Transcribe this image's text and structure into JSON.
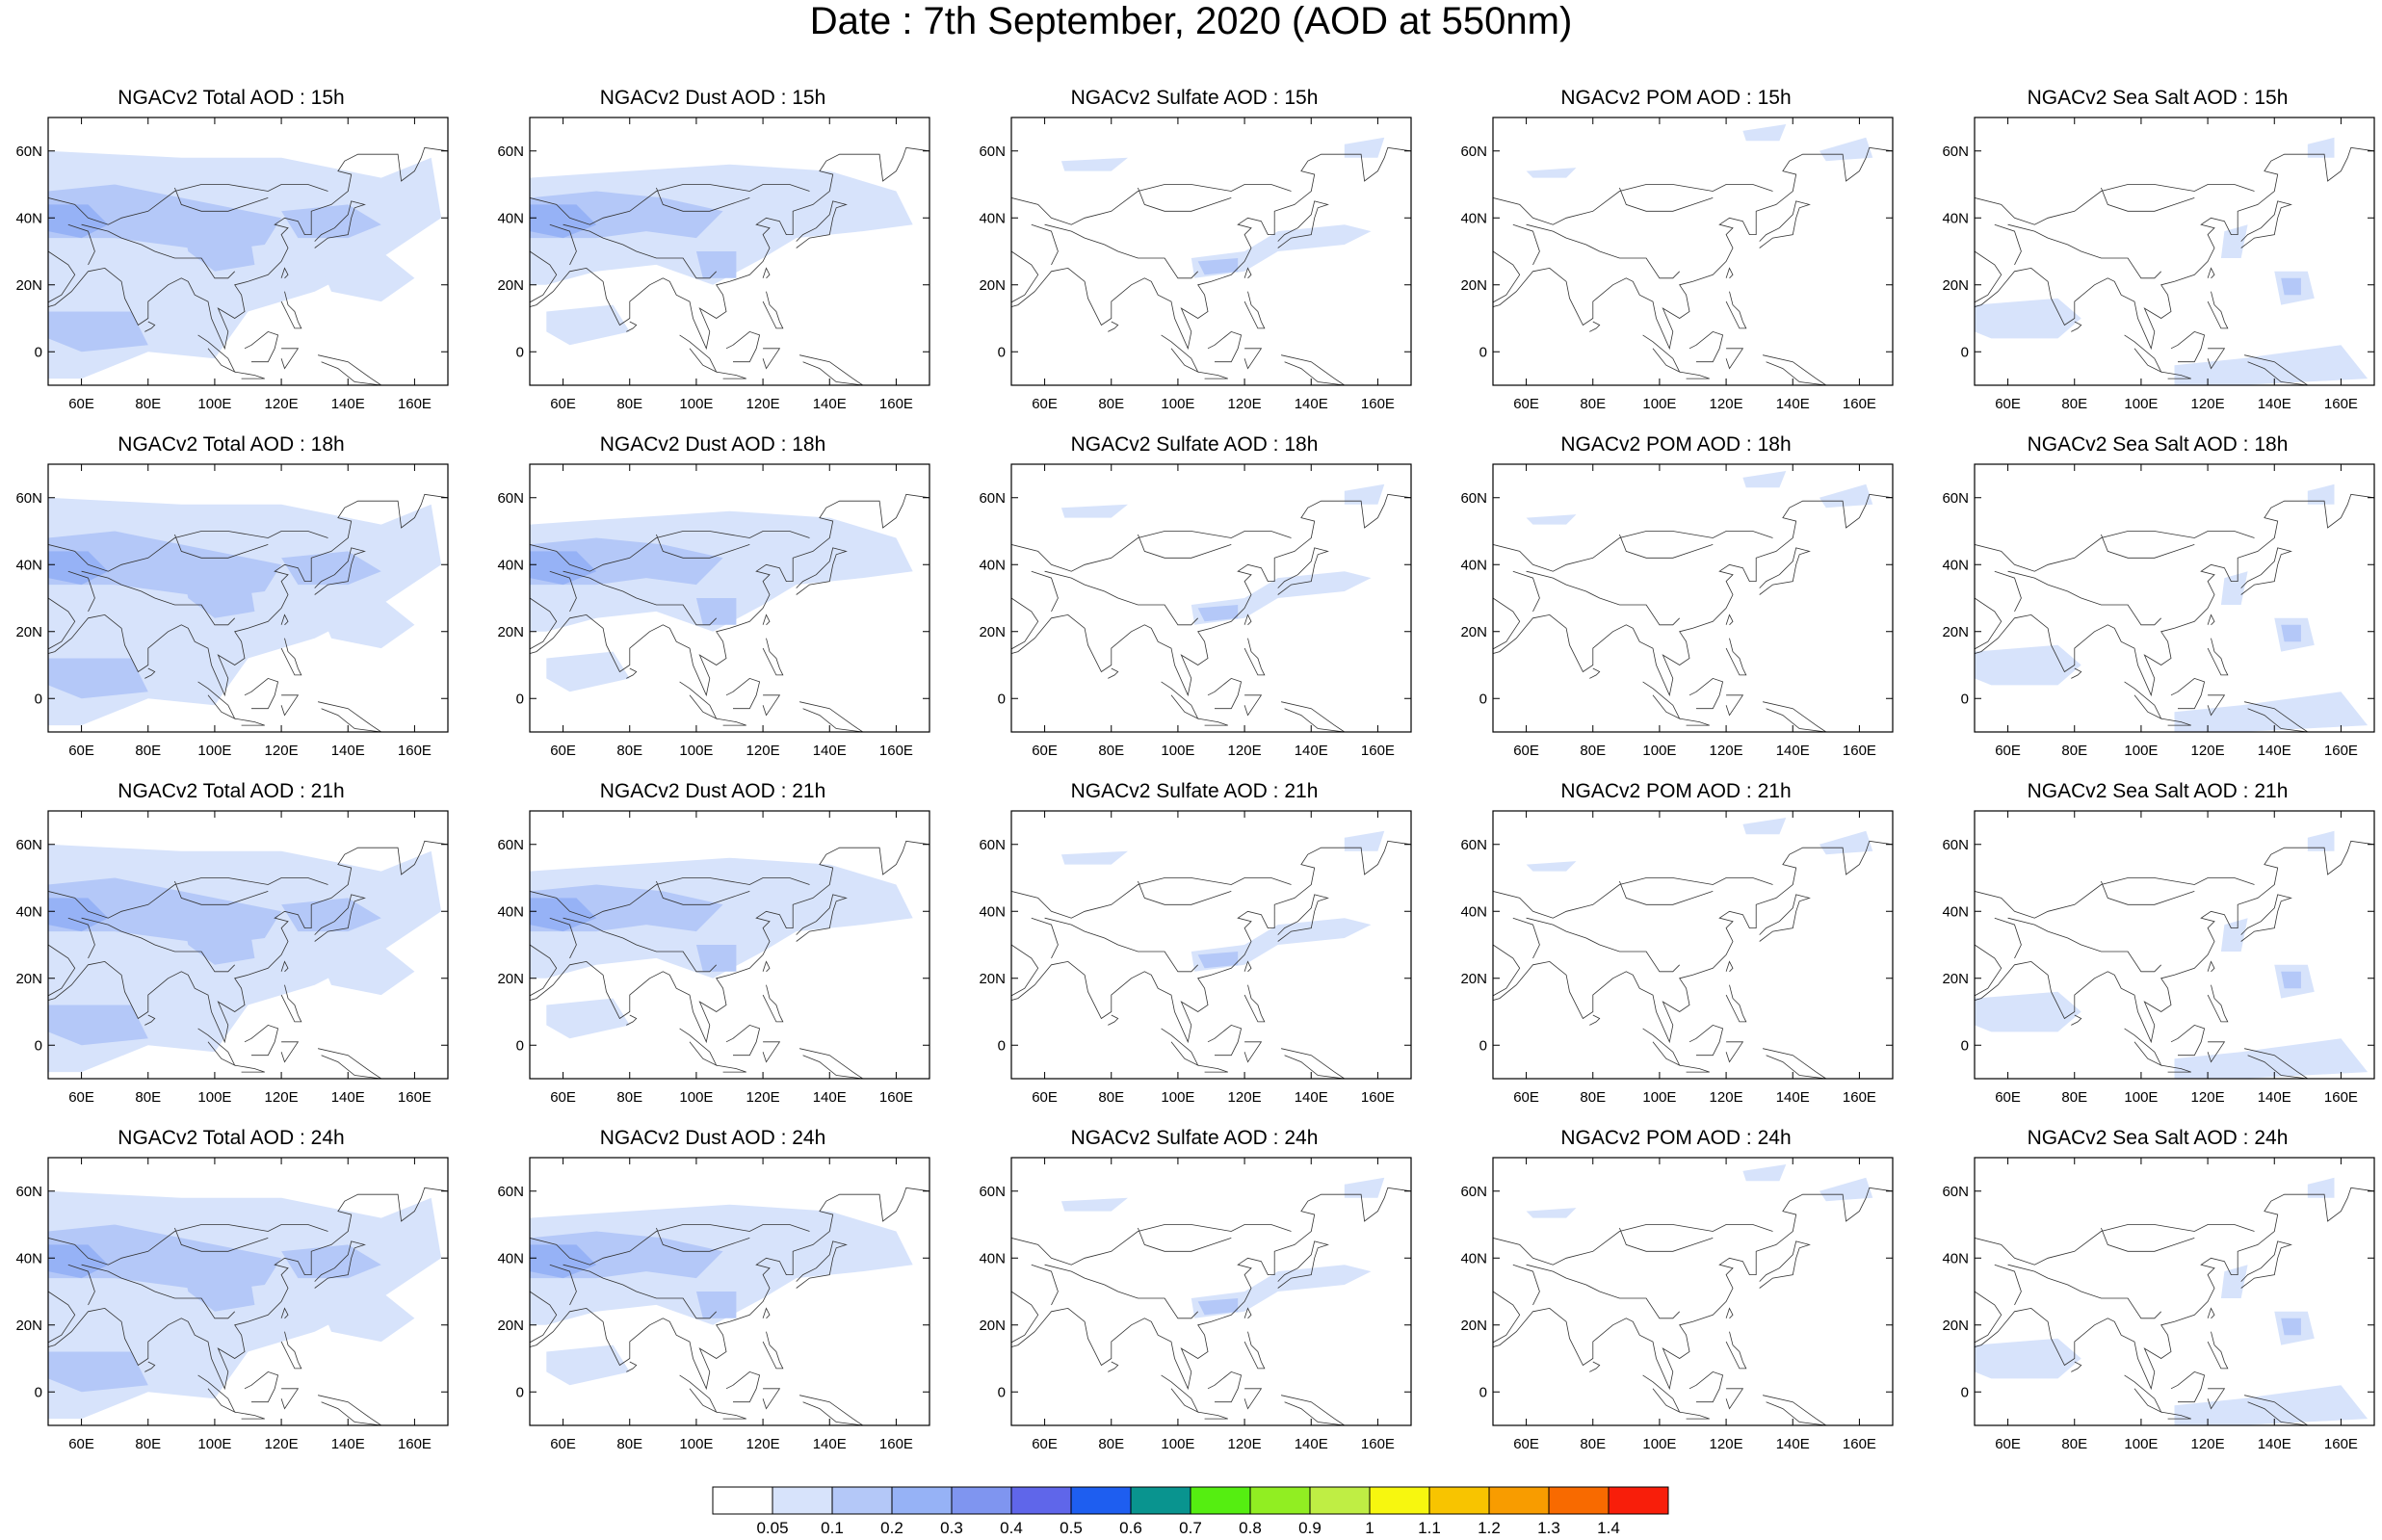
{
  "title": "Date : 7th September, 2020 (AOD at 550nm)",
  "columns": [
    {
      "key": "total",
      "prefix": "NGACv2 Total AOD : "
    },
    {
      "key": "dust",
      "prefix": "NGACv2 Dust AOD : "
    },
    {
      "key": "sulfate",
      "prefix": "NGACv2 Sulfate AOD : "
    },
    {
      "key": "pom",
      "prefix": "NGACv2 POM AOD : "
    },
    {
      "key": "seasalt",
      "prefix": "NGACv2 Sea Salt AOD : "
    }
  ],
  "hours": [
    "15h",
    "18h",
    "21h",
    "24h"
  ],
  "panel_titles": [
    [
      "NGACv2 Total AOD : 15h",
      "NGACv2 Dust AOD : 15h",
      "NGACv2 Sulfate AOD : 15h",
      "NGACv2 POM AOD : 15h",
      "NGACv2 Sea Salt AOD : 15h"
    ],
    [
      "NGACv2 Total AOD : 18h",
      "NGACv2 Dust AOD : 18h",
      "NGACv2 Sulfate AOD : 18h",
      "NGACv2 POM AOD : 18h",
      "NGACv2 Sea Salt AOD : 18h"
    ],
    [
      "NGACv2 Total AOD : 21h",
      "NGACv2 Dust AOD : 21h",
      "NGACv2 Sulfate AOD : 21h",
      "NGACv2 POM AOD : 21h",
      "NGACv2 Sea Salt AOD : 21h"
    ],
    [
      "NGACv2 Total AOD : 24h",
      "NGACv2 Dust AOD : 24h",
      "NGACv2 Sulfate AOD : 24h",
      "NGACv2 POM AOD : 24h",
      "NGACv2 Sea Salt  AOD : 24h"
    ]
  ],
  "map": {
    "lon_range": [
      50,
      170
    ],
    "lat_range": [
      -10,
      70
    ],
    "lon_ticks": [
      60,
      80,
      100,
      120,
      140,
      160
    ],
    "lon_tick_labels": [
      "60E",
      "80E",
      "100E",
      "120E",
      "140E",
      "160E"
    ],
    "lat_ticks": [
      0,
      20,
      40,
      60
    ],
    "lat_tick_labels": [
      "0",
      "20N",
      "40N",
      "60N"
    ]
  },
  "colorbar": {
    "labels": [
      "0.05",
      "0.1",
      "0.2",
      "0.3",
      "0.4",
      "0.5",
      "0.6",
      "0.7",
      "0.8",
      "0.9",
      "1",
      "1.1",
      "1.2",
      "1.3",
      "1.4"
    ],
    "colors": [
      "#ffffff",
      "#d7e3fb",
      "#b4c8f8",
      "#96b2f6",
      "#7f95f0",
      "#5f66ea",
      "#1e5ef0",
      "#09948f",
      "#55ee11",
      "#91ee22",
      "#bfee44",
      "#f7f70f",
      "#f8c400",
      "#f89c00",
      "#f86a00",
      "#f81e0a"
    ]
  },
  "fields": {
    "total": {
      "level1": [
        [
          [
            50,
            60
          ],
          [
            90,
            58
          ],
          [
            120,
            58
          ],
          [
            150,
            52
          ],
          [
            165,
            58
          ],
          [
            168,
            40
          ],
          [
            150,
            28
          ],
          [
            130,
            18
          ],
          [
            110,
            12
          ],
          [
            100,
            -2
          ],
          [
            80,
            0
          ],
          [
            60,
            -8
          ],
          [
            50,
            -8
          ]
        ],
        [
          [
            130,
            30
          ],
          [
            150,
            30
          ],
          [
            160,
            22
          ],
          [
            150,
            15
          ],
          [
            135,
            18
          ]
        ]
      ],
      "level2": [
        [
          [
            50,
            48
          ],
          [
            70,
            50
          ],
          [
            90,
            46
          ],
          [
            110,
            42
          ],
          [
            120,
            40
          ],
          [
            115,
            32
          ],
          [
            100,
            30
          ],
          [
            85,
            32
          ],
          [
            70,
            34
          ],
          [
            50,
            34
          ]
        ],
        [
          [
            120,
            42
          ],
          [
            140,
            44
          ],
          [
            150,
            38
          ],
          [
            140,
            34
          ],
          [
            125,
            34
          ]
        ],
        [
          [
            50,
            12
          ],
          [
            75,
            12
          ],
          [
            80,
            2
          ],
          [
            60,
            0
          ],
          [
            50,
            4
          ]
        ],
        [
          [
            90,
            40
          ],
          [
            110,
            38
          ],
          [
            112,
            26
          ],
          [
            100,
            24
          ],
          [
            92,
            30
          ]
        ]
      ],
      "level3": [
        [
          [
            50,
            44
          ],
          [
            62,
            44
          ],
          [
            68,
            38
          ],
          [
            60,
            34
          ],
          [
            50,
            36
          ]
        ]
      ]
    },
    "dust": {
      "level1": [
        [
          [
            50,
            52
          ],
          [
            80,
            54
          ],
          [
            110,
            56
          ],
          [
            140,
            54
          ],
          [
            160,
            48
          ],
          [
            165,
            38
          ],
          [
            150,
            36
          ],
          [
            130,
            34
          ],
          [
            120,
            28
          ],
          [
            105,
            20
          ],
          [
            88,
            26
          ],
          [
            70,
            24
          ],
          [
            55,
            20
          ],
          [
            50,
            20
          ]
        ],
        [
          [
            55,
            12
          ],
          [
            75,
            14
          ],
          [
            80,
            6
          ],
          [
            62,
            2
          ],
          [
            55,
            6
          ]
        ]
      ],
      "level2": [
        [
          [
            50,
            46
          ],
          [
            70,
            48
          ],
          [
            90,
            46
          ],
          [
            108,
            42
          ],
          [
            100,
            34
          ],
          [
            85,
            36
          ],
          [
            70,
            34
          ],
          [
            50,
            34
          ]
        ],
        [
          [
            100,
            30
          ],
          [
            112,
            30
          ],
          [
            112,
            22
          ],
          [
            102,
            22
          ]
        ]
      ],
      "level3": [
        [
          [
            50,
            44
          ],
          [
            64,
            44
          ],
          [
            70,
            38
          ],
          [
            60,
            34
          ],
          [
            50,
            36
          ]
        ]
      ]
    },
    "sulfate": {
      "level1": [
        [
          [
            104,
            28
          ],
          [
            120,
            30
          ],
          [
            130,
            36
          ],
          [
            150,
            38
          ],
          [
            158,
            36
          ],
          [
            150,
            32
          ],
          [
            130,
            30
          ],
          [
            120,
            24
          ],
          [
            105,
            22
          ]
        ],
        [
          [
            65,
            57
          ],
          [
            85,
            58
          ],
          [
            80,
            54
          ],
          [
            66,
            54
          ]
        ],
        [
          [
            150,
            62
          ],
          [
            162,
            64
          ],
          [
            160,
            58
          ],
          [
            150,
            58
          ]
        ]
      ],
      "level2": [
        [
          [
            106,
            27
          ],
          [
            118,
            28
          ],
          [
            118,
            24
          ],
          [
            108,
            23
          ]
        ]
      ],
      "level3": []
    },
    "pom": {
      "level1": [
        [
          [
            60,
            54
          ],
          [
            75,
            55
          ],
          [
            72,
            52
          ],
          [
            62,
            52
          ]
        ],
        [
          [
            148,
            60
          ],
          [
            162,
            64
          ],
          [
            164,
            58
          ],
          [
            150,
            57
          ]
        ],
        [
          [
            125,
            66
          ],
          [
            138,
            68
          ],
          [
            136,
            63
          ],
          [
            126,
            63
          ]
        ]
      ],
      "level2": [],
      "level3": []
    },
    "seasalt": {
      "level1": [
        [
          [
            50,
            14
          ],
          [
            75,
            16
          ],
          [
            82,
            10
          ],
          [
            75,
            4
          ],
          [
            55,
            4
          ],
          [
            50,
            6
          ]
        ],
        [
          [
            140,
            24
          ],
          [
            150,
            24
          ],
          [
            152,
            16
          ],
          [
            142,
            14
          ]
        ],
        [
          [
            125,
            36
          ],
          [
            132,
            38
          ],
          [
            130,
            28
          ],
          [
            124,
            28
          ]
        ],
        [
          [
            110,
            -4
          ],
          [
            130,
            -2
          ],
          [
            160,
            2
          ],
          [
            168,
            -8
          ],
          [
            130,
            -10
          ],
          [
            110,
            -10
          ]
        ],
        [
          [
            150,
            62
          ],
          [
            158,
            64
          ],
          [
            158,
            58
          ],
          [
            150,
            58
          ]
        ]
      ],
      "level2": [
        [
          [
            142,
            22
          ],
          [
            148,
            22
          ],
          [
            148,
            17
          ],
          [
            143,
            17
          ]
        ]
      ],
      "level3": []
    }
  }
}
